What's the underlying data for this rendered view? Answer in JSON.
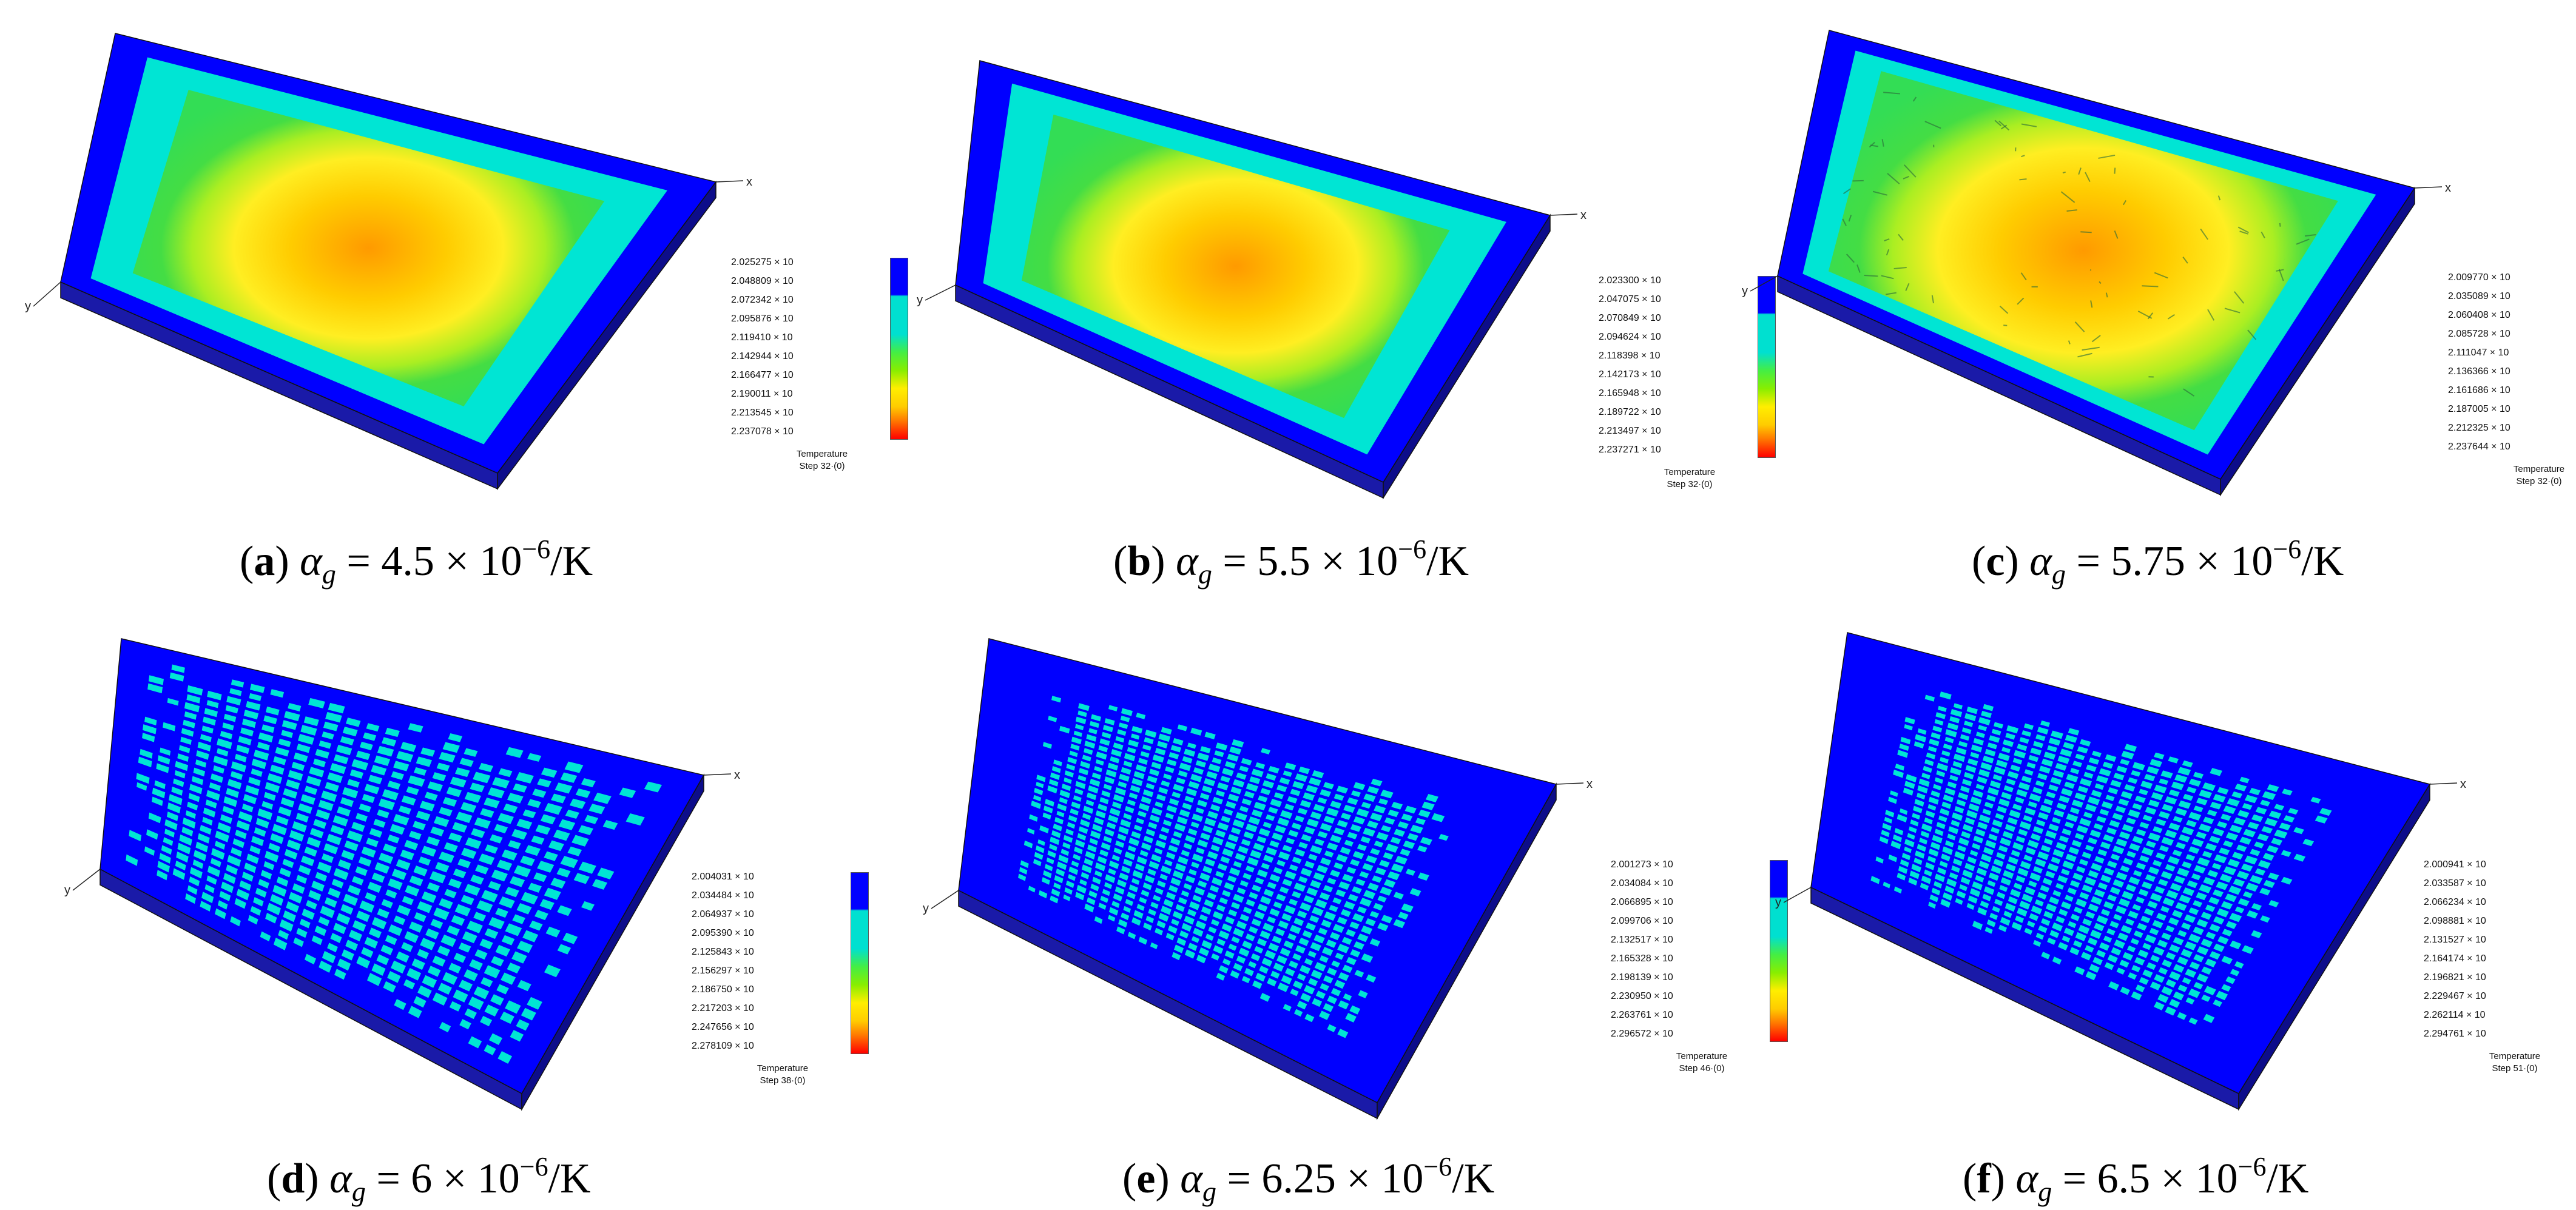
{
  "panels": [
    {
      "letter": "a",
      "subscript": "g",
      "symbol": "α",
      "value": "4.5",
      "exp": "−6",
      "unit": "/K",
      "legend_values": [
        "2.025275 × 10",
        "2.048809 × 10",
        "2.072342 × 10",
        "2.095876 × 10",
        "2.119410 × 10",
        "2.142944 × 10",
        "2.166477 × 10",
        "2.190011 × 10",
        "2.213545 × 10",
        "2.237078 × 10"
      ],
      "legend_title": "Temperature",
      "legend_step": "Step 32·(0)",
      "style": "smooth"
    },
    {
      "letter": "b",
      "subscript": "g",
      "symbol": "α",
      "value": "5.5",
      "exp": "−6",
      "unit": "/K",
      "legend_values": [
        "2.023300 × 10",
        "2.047075 × 10",
        "2.070849 × 10",
        "2.094624 × 10",
        "2.118398 × 10",
        "2.142173 × 10",
        "2.165948 × 10",
        "2.189722 × 10",
        "2.213497 × 10",
        "2.237271 × 10"
      ],
      "legend_title": "Temperature",
      "legend_step": "Step 32·(0)",
      "style": "smooth"
    },
    {
      "letter": "c",
      "subscript": "g",
      "symbol": "α",
      "value": "5.75",
      "exp": "−6",
      "unit": "/K",
      "legend_values": [
        "2.009770 × 10",
        "2.035089 × 10",
        "2.060408 × 10",
        "2.085728 × 10",
        "2.111047 × 10",
        "2.136366 × 10",
        "2.161686 × 10",
        "2.187005 × 10",
        "2.212325 × 10",
        "2.237644 × 10"
      ],
      "legend_title": "Temperature",
      "legend_step": "Step 32·(0)",
      "style": "cracked-warm"
    },
    {
      "letter": "d",
      "subscript": "g",
      "symbol": "α",
      "value": "6",
      "exp": "−6",
      "unit": "/K",
      "legend_values": [
        "2.004031 × 10",
        "2.034484 × 10",
        "2.064937 × 10",
        "2.095390 × 10",
        "2.125843 × 10",
        "2.156297 × 10",
        "2.186750 × 10",
        "2.217203 × 10",
        "2.247656 × 10",
        "2.278109 × 10"
      ],
      "legend_title": "Temperature",
      "legend_step": "Step 38·(0)",
      "style": "cracked"
    },
    {
      "letter": "e",
      "subscript": "g",
      "symbol": "α",
      "value": "6.25",
      "exp": "−6",
      "unit": "/K",
      "legend_values": [
        "2.001273 × 10",
        "2.034084 × 10",
        "2.066895 × 10",
        "2.099706 × 10",
        "2.132517 × 10",
        "2.165328 × 10",
        "2.198139 × 10",
        "2.230950 × 10",
        "2.263761 × 10",
        "2.296572 × 10"
      ],
      "legend_title": "Temperature",
      "legend_step": "Step 46·(0)",
      "style": "cracked-sparse"
    },
    {
      "letter": "f",
      "subscript": "g",
      "symbol": "α",
      "value": "6.5",
      "exp": "−6",
      "unit": "/K",
      "legend_values": [
        "2.000941 × 10",
        "2.033587 × 10",
        "2.066234 × 10",
        "2.098881 × 10",
        "2.131527 × 10",
        "2.164174 × 10",
        "2.196821 × 10",
        "2.229467 × 10",
        "2.262114 × 10",
        "2.294761 × 10"
      ],
      "legend_title": "Temperature",
      "legend_step": "Step 51·(0)",
      "style": "cracked-sparse"
    }
  ],
  "axis_labels": {
    "x": "x",
    "y": "y"
  },
  "colors": {
    "blue": "#0000ff",
    "cyan": "#00e5d4",
    "green": "#33ee33",
    "yellow": "#ffee00",
    "orange": "#ff9900",
    "side": "#1a1aa8"
  }
}
